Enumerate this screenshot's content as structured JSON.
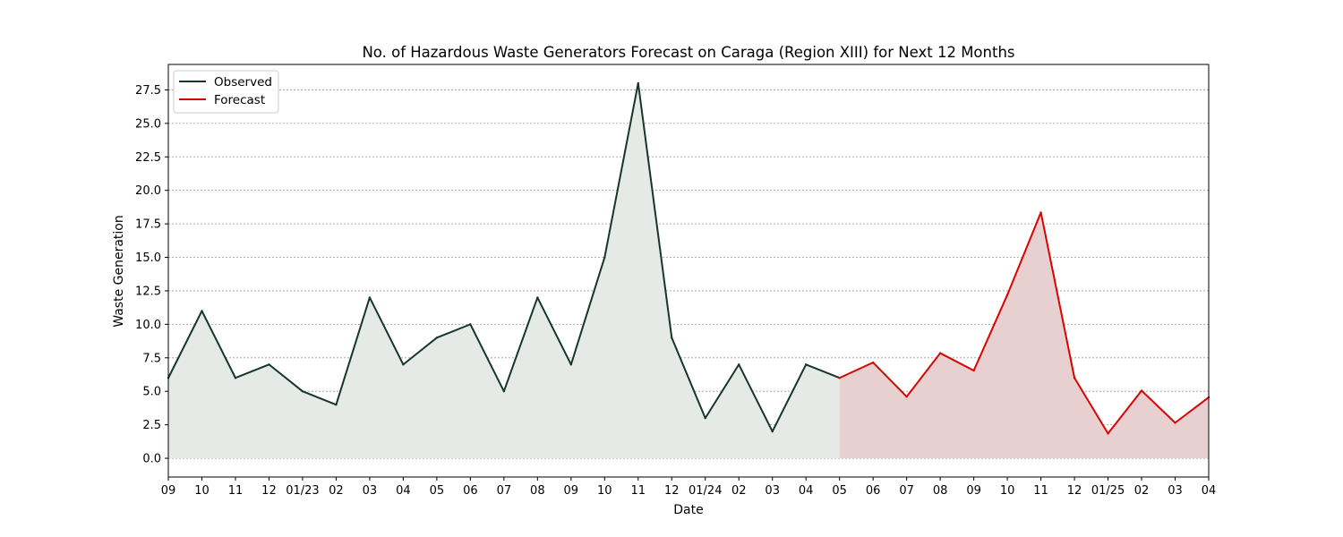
{
  "chart_data": {
    "type": "area",
    "title": "No. of Hazardous Waste Generators Forecast on Caraga (Region XIII) for Next 12 Months",
    "xlabel": "Date",
    "ylabel": "Waste Generation",
    "x_tick_labels": [
      "09",
      "10",
      "11",
      "12",
      "01/23",
      "02",
      "03",
      "04",
      "05",
      "06",
      "07",
      "08",
      "09",
      "10",
      "11",
      "12",
      "01/24",
      "02",
      "03",
      "04",
      "05",
      "06",
      "07",
      "08",
      "09",
      "10",
      "11",
      "12",
      "01/25",
      "02",
      "03",
      "04"
    ],
    "x_start": "2022-09",
    "x_end": "2025-04",
    "ylim": [
      -1.4,
      29.4
    ],
    "yticks": [
      0.0,
      2.5,
      5.0,
      7.5,
      10.0,
      12.5,
      15.0,
      17.5,
      20.0,
      22.5,
      25.0,
      27.5
    ],
    "ytick_labels": [
      "0.0",
      "2.5",
      "5.0",
      "7.5",
      "10.0",
      "12.5",
      "15.0",
      "17.5",
      "20.0",
      "22.5",
      "25.0",
      "27.5"
    ],
    "grid": "horizontal dotted",
    "legend_position": "upper left",
    "series": [
      {
        "name": "Observed",
        "color": "#17362b",
        "fill": "#e5eae7",
        "x": [
          "2022-09",
          "2022-10",
          "2022-11",
          "2022-12",
          "2023-01",
          "2023-02",
          "2023-03",
          "2023-04",
          "2023-05",
          "2023-06",
          "2023-07",
          "2023-08",
          "2023-09",
          "2023-10",
          "2023-11",
          "2023-12",
          "2024-01",
          "2024-02",
          "2024-03",
          "2024-04",
          "2024-05"
        ],
        "values": [
          6,
          11,
          6,
          7,
          5,
          4,
          12,
          7,
          9,
          10,
          5,
          12,
          7,
          15,
          28,
          9,
          3,
          7,
          2,
          7,
          6
        ]
      },
      {
        "name": "Forecast",
        "color": "#d90000",
        "fill": "#e8d0d0",
        "x": [
          "2024-05",
          "2024-06",
          "2024-07",
          "2024-08",
          "2024-09",
          "2024-10",
          "2024-11",
          "2024-12",
          "2025-01",
          "2025-02",
          "2025-03",
          "2025-04"
        ],
        "values": [
          6.0,
          7.15,
          4.6,
          7.85,
          6.55,
          12.2,
          18.35,
          6.0,
          1.85,
          5.05,
          2.65,
          4.55
        ]
      }
    ]
  }
}
